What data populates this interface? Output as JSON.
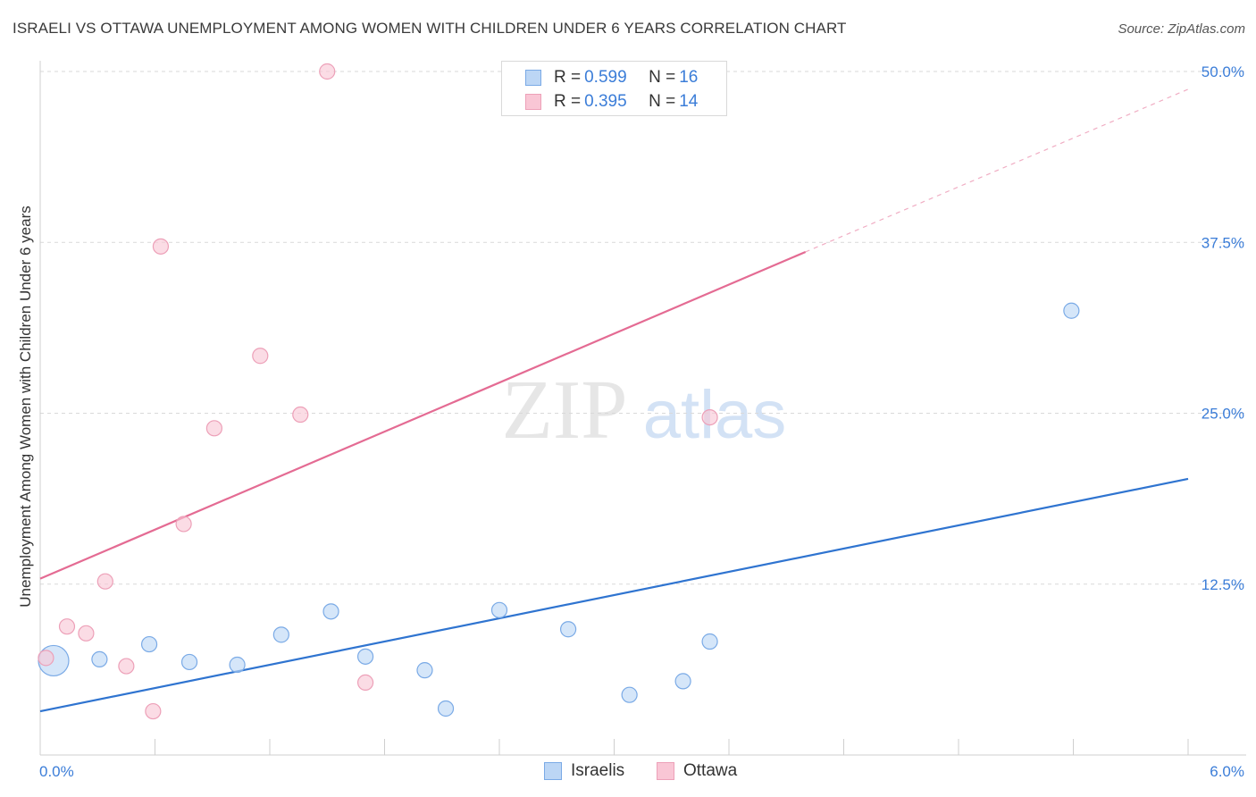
{
  "header": {
    "title": "ISRAELI VS OTTAWA UNEMPLOYMENT AMONG WOMEN WITH CHILDREN UNDER 6 YEARS CORRELATION CHART",
    "source": "Source: ZipAtlas.com"
  },
  "watermark": {
    "zip": "ZIP",
    "atlas": "atlas"
  },
  "colors": {
    "blue_fill": "#bcd6f5",
    "blue_stroke": "#7aaae6",
    "blue_line": "#2f74d0",
    "pink_fill": "#f9c6d5",
    "pink_stroke": "#eda0b8",
    "pink_line": "#e46b93",
    "value_text": "#3b7dd8",
    "grid": "#d9d9d9"
  },
  "legend": {
    "r_label": "R = ",
    "n_label": "N = ",
    "items": [
      {
        "r": "0.599",
        "n": "16"
      },
      {
        "r": "0.395",
        "n": "14"
      }
    ]
  },
  "chart_data": {
    "type": "scatter",
    "title": "ISRAELI VS OTTAWA UNEMPLOYMENT AMONG WOMEN WITH CHILDREN UNDER 6 YEARS CORRELATION CHART",
    "xlabel": "",
    "ylabel": "Unemployment Among Women with Children Under 6 years",
    "xlim": [
      0.0,
      6.0
    ],
    "ylim": [
      0.0,
      50.0
    ],
    "x_tick_labels": [
      "0.0%",
      "6.0%"
    ],
    "y_ticks": [
      12.5,
      25.0,
      37.5,
      50.0
    ],
    "y_tick_labels": [
      "12.5%",
      "25.0%",
      "37.5%",
      "50.0%"
    ],
    "grid": true,
    "legend_position": "top-center",
    "series": [
      {
        "name": "Israelis",
        "r": 0.599,
        "n": 16,
        "points": [
          {
            "x": 0.07,
            "y": 6.9,
            "big": true
          },
          {
            "x": 0.31,
            "y": 7.0
          },
          {
            "x": 0.57,
            "y": 8.1
          },
          {
            "x": 0.78,
            "y": 6.8
          },
          {
            "x": 1.03,
            "y": 6.6
          },
          {
            "x": 1.26,
            "y": 8.8
          },
          {
            "x": 1.52,
            "y": 10.5
          },
          {
            "x": 1.7,
            "y": 7.2
          },
          {
            "x": 2.01,
            "y": 6.2
          },
          {
            "x": 2.12,
            "y": 3.4
          },
          {
            "x": 2.4,
            "y": 10.6
          },
          {
            "x": 2.76,
            "y": 9.2
          },
          {
            "x": 3.08,
            "y": 4.4
          },
          {
            "x": 3.36,
            "y": 5.4
          },
          {
            "x": 3.5,
            "y": 8.3
          },
          {
            "x": 5.39,
            "y": 32.5
          }
        ],
        "trend": {
          "x0": 0.0,
          "y0": 3.2,
          "x1": 6.0,
          "y1": 20.2
        }
      },
      {
        "name": "Ottawa",
        "r": 0.395,
        "n": 14,
        "points": [
          {
            "x": 0.03,
            "y": 7.1
          },
          {
            "x": 0.14,
            "y": 9.4
          },
          {
            "x": 0.24,
            "y": 8.9
          },
          {
            "x": 0.34,
            "y": 12.7
          },
          {
            "x": 0.45,
            "y": 6.5
          },
          {
            "x": 0.59,
            "y": 3.2
          },
          {
            "x": 0.63,
            "y": 37.2
          },
          {
            "x": 0.75,
            "y": 16.9
          },
          {
            "x": 0.91,
            "y": 23.9
          },
          {
            "x": 1.15,
            "y": 29.2
          },
          {
            "x": 1.36,
            "y": 24.9
          },
          {
            "x": 1.5,
            "y": 50.0
          },
          {
            "x": 1.7,
            "y": 5.3
          },
          {
            "x": 3.5,
            "y": 24.7
          }
        ],
        "trend": {
          "x0": 0.0,
          "y0": 12.9,
          "x1": 4.0,
          "y1": 36.8
        },
        "trend_dashed": {
          "x0": 4.0,
          "y0": 36.8,
          "x1": 6.0,
          "y1": 48.7
        }
      }
    ]
  }
}
